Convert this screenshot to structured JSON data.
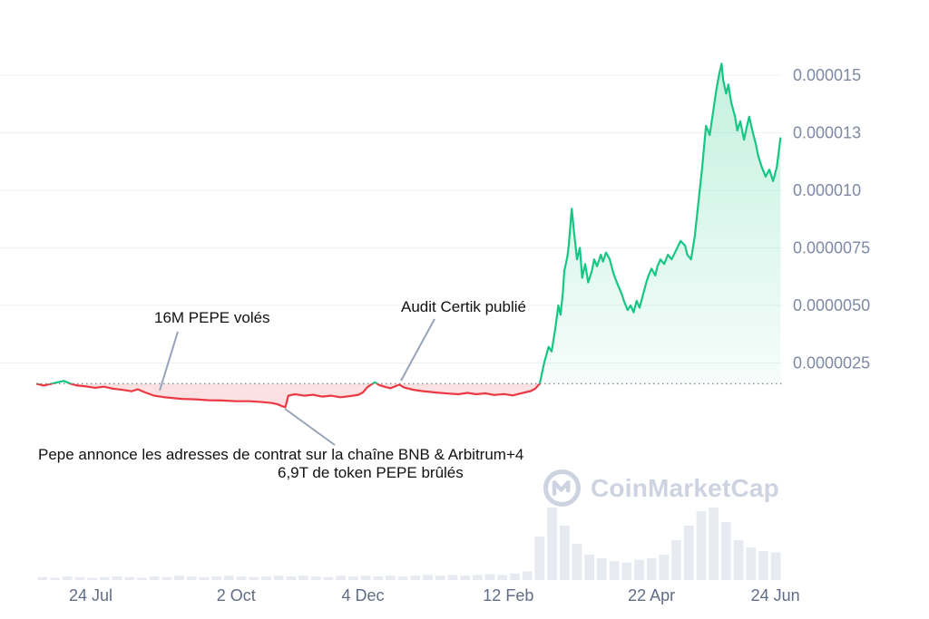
{
  "chart_data": {
    "type": "line",
    "title": "",
    "xlabel": "",
    "ylabel": "",
    "grid": true,
    "legend": null,
    "x_range": [
      "24 Jul",
      "24 Jun"
    ],
    "x_tick_labels": [
      {
        "label": "24 Jul",
        "t": 7.3
      },
      {
        "label": "2 Oct",
        "t": 26.8
      },
      {
        "label": "4 Dec",
        "t": 43.8
      },
      {
        "label": "12 Feb",
        "t": 63.3
      },
      {
        "label": "22 Apr",
        "t": 82.5
      },
      {
        "label": "24 Jun",
        "t": 99.1
      }
    ],
    "y_ticks": [
      {
        "label": "0.000015",
        "value": 15
      },
      {
        "label": "0.000013",
        "value": 12.5
      },
      {
        "label": "0.000010",
        "value": 10
      },
      {
        "label": "0.0000075",
        "value": 7.5
      },
      {
        "label": "0.0000050",
        "value": 5
      },
      {
        "label": "0.0000025",
        "value": 2.5
      }
    ],
    "y_value_unit": "price in 1e-6 USD",
    "ylim": [
      0,
      17
    ],
    "baseline": {
      "value": 1.6,
      "style": "dotted"
    },
    "series": {
      "name": "PEPE price",
      "points": [
        [
          0,
          1.6
        ],
        [
          1.0,
          1.52
        ],
        [
          1.8,
          1.58
        ],
        [
          2.7,
          1.65
        ],
        [
          3.7,
          1.72
        ],
        [
          4.6,
          1.6
        ],
        [
          5.5,
          1.52
        ],
        [
          6.7,
          1.48
        ],
        [
          7.9,
          1.42
        ],
        [
          9.1,
          1.47
        ],
        [
          10.3,
          1.38
        ],
        [
          11.6,
          1.33
        ],
        [
          12.8,
          1.27
        ],
        [
          13.6,
          1.36
        ],
        [
          14.6,
          1.22
        ],
        [
          15.8,
          1.08
        ],
        [
          17.0,
          1.02
        ],
        [
          18.2,
          0.98
        ],
        [
          19.5,
          0.94
        ],
        [
          21.3,
          0.92
        ],
        [
          23.1,
          0.88
        ],
        [
          24.9,
          0.87
        ],
        [
          26.8,
          0.84
        ],
        [
          28.6,
          0.84
        ],
        [
          30.4,
          0.8
        ],
        [
          31.6,
          0.76
        ],
        [
          32.4,
          0.7
        ],
        [
          33.0,
          0.62
        ],
        [
          33.4,
          0.58
        ],
        [
          33.8,
          1.08
        ],
        [
          34.7,
          1.14
        ],
        [
          35.9,
          1.08
        ],
        [
          37.1,
          1.12
        ],
        [
          38.3,
          1.04
        ],
        [
          39.5,
          1.08
        ],
        [
          40.8,
          1.01
        ],
        [
          42.0,
          1.06
        ],
        [
          43.2,
          1.12
        ],
        [
          43.8,
          1.22
        ],
        [
          44.4,
          1.45
        ],
        [
          45.0,
          1.58
        ],
        [
          45.4,
          1.66
        ],
        [
          46.0,
          1.54
        ],
        [
          46.8,
          1.46
        ],
        [
          47.5,
          1.4
        ],
        [
          48.7,
          1.56
        ],
        [
          49.3,
          1.44
        ],
        [
          50.5,
          1.34
        ],
        [
          51.7,
          1.28
        ],
        [
          52.9,
          1.24
        ],
        [
          54.1,
          1.2
        ],
        [
          55.4,
          1.17
        ],
        [
          56.6,
          1.14
        ],
        [
          57.8,
          1.2
        ],
        [
          59.0,
          1.14
        ],
        [
          60.2,
          1.18
        ],
        [
          61.4,
          1.11
        ],
        [
          62.7,
          1.15
        ],
        [
          63.9,
          1.09
        ],
        [
          65.1,
          1.19
        ],
        [
          66.3,
          1.28
        ],
        [
          66.9,
          1.38
        ],
        [
          67.5,
          1.6
        ],
        [
          68.1,
          2.5
        ],
        [
          68.7,
          3.2
        ],
        [
          69.1,
          3.0
        ],
        [
          69.6,
          4.0
        ],
        [
          70.0,
          5.0
        ],
        [
          70.3,
          4.6
        ],
        [
          70.6,
          5.5
        ],
        [
          70.8,
          6.5
        ],
        [
          71.2,
          7.1
        ],
        [
          71.4,
          7.6
        ],
        [
          71.8,
          9.2
        ],
        [
          72.1,
          8.2
        ],
        [
          72.5,
          7.0
        ],
        [
          72.9,
          7.5
        ],
        [
          73.2,
          6.2
        ],
        [
          73.6,
          6.8
        ],
        [
          74.0,
          6.0
        ],
        [
          74.5,
          6.5
        ],
        [
          74.8,
          7.0
        ],
        [
          75.2,
          6.7
        ],
        [
          75.7,
          7.2
        ],
        [
          76.0,
          6.9
        ],
        [
          76.4,
          7.3
        ],
        [
          76.9,
          7.0
        ],
        [
          77.3,
          6.5
        ],
        [
          77.6,
          6.2
        ],
        [
          78.1,
          5.8
        ],
        [
          78.5,
          5.5
        ],
        [
          78.8,
          5.2
        ],
        [
          79.3,
          4.8
        ],
        [
          79.7,
          5.0
        ],
        [
          80.1,
          4.7
        ],
        [
          80.5,
          5.2
        ],
        [
          80.9,
          4.9
        ],
        [
          81.3,
          5.4
        ],
        [
          81.8,
          6.0
        ],
        [
          82.1,
          6.3
        ],
        [
          82.5,
          6.6
        ],
        [
          83.0,
          6.3
        ],
        [
          83.3,
          6.7
        ],
        [
          83.7,
          7.0
        ],
        [
          84.2,
          6.8
        ],
        [
          84.7,
          7.2
        ],
        [
          85.2,
          7.0
        ],
        [
          85.8,
          7.4
        ],
        [
          86.4,
          7.8
        ],
        [
          87.0,
          7.6
        ],
        [
          87.3,
          7.2
        ],
        [
          87.8,
          7.0
        ],
        [
          88.3,
          8.0
        ],
        [
          88.8,
          9.5
        ],
        [
          89.3,
          11.0
        ],
        [
          89.8,
          12.8
        ],
        [
          90.3,
          12.4
        ],
        [
          90.8,
          13.5
        ],
        [
          91.2,
          14.4
        ],
        [
          91.6,
          15.1
        ],
        [
          91.9,
          15.5
        ],
        [
          92.1,
          14.8
        ],
        [
          92.5,
          14.2
        ],
        [
          92.8,
          14.6
        ],
        [
          93.2,
          13.8
        ],
        [
          93.7,
          13.2
        ],
        [
          94.0,
          12.6
        ],
        [
          94.4,
          13.0
        ],
        [
          94.9,
          12.2
        ],
        [
          95.3,
          12.8
        ],
        [
          95.6,
          13.2
        ],
        [
          96.1,
          12.5
        ],
        [
          96.5,
          12.0
        ],
        [
          96.8,
          11.5
        ],
        [
          97.3,
          11.0
        ],
        [
          97.8,
          10.6
        ],
        [
          98.3,
          10.9
        ],
        [
          98.8,
          10.4
        ],
        [
          99.3,
          11.0
        ],
        [
          99.8,
          12.3
        ]
      ]
    },
    "volume": {
      "unit": "relative 0-1",
      "values": [
        0.04,
        0.03,
        0.05,
        0.04,
        0.03,
        0.04,
        0.05,
        0.04,
        0.03,
        0.05,
        0.04,
        0.06,
        0.05,
        0.04,
        0.05,
        0.06,
        0.05,
        0.04,
        0.05,
        0.06,
        0.05,
        0.06,
        0.05,
        0.04,
        0.06,
        0.05,
        0.06,
        0.05,
        0.06,
        0.05,
        0.06,
        0.07,
        0.06,
        0.07,
        0.06,
        0.07,
        0.08,
        0.07,
        0.09,
        0.12,
        0.6,
        1.0,
        0.75,
        0.5,
        0.35,
        0.3,
        0.26,
        0.24,
        0.28,
        0.3,
        0.35,
        0.55,
        0.75,
        0.95,
        1.0,
        0.8,
        0.55,
        0.45,
        0.4,
        0.38
      ]
    },
    "colors": {
      "up": "#16c784",
      "down": "#ea3943",
      "fill_down": "rgba(234,57,67,0.15)",
      "grid": "#eff1f5",
      "axis_label": "#7e8aa4",
      "axis_label_x": "#5f6c86",
      "volume": "#e7eaf0",
      "baseline": "#8c929e",
      "annotation_line": "#97a3b9"
    },
    "annotations": [
      {
        "text": "16M PEPE volés",
        "line": {
          "x1": 196,
          "y1": 366,
          "x2": 176,
          "y2": 431
        }
      },
      {
        "text": "Audit Certik publié",
        "line": {
          "x1": 479,
          "y1": 352,
          "x2": 442,
          "y2": 420
        }
      },
      {
        "text": "Pepe annonce les adresses de contrat sur la chaîne BNB & Arbitrum+4",
        "line": {
          "x1": 314,
          "y1": 451,
          "x2": 369,
          "y2": 491
        }
      },
      {
        "text": "6,9T de token PEPE brûlés",
        "line": null
      }
    ]
  },
  "watermark": {
    "text": "CoinMarketCap"
  }
}
